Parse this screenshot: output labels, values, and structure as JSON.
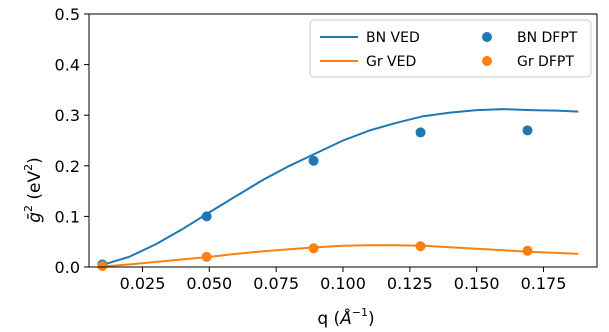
{
  "chart_data": {
    "type": "line",
    "xlabel_prefix": "q (",
    "xlabel_unit_base": "Å",
    "xlabel_unit_exp": "−1",
    "xlabel_suffix": ")",
    "ylabel_symbol": "ḡ",
    "ylabel_exp": "2",
    "ylabel_unit": " (eV",
    "ylabel_unit_exp": "2",
    "ylabel_close": ")",
    "xlim": [
      0.005,
      0.195
    ],
    "ylim": [
      0,
      0.5
    ],
    "xticks": [
      0.025,
      0.05,
      0.075,
      0.1,
      0.125,
      0.15,
      0.175
    ],
    "xtick_labels": [
      "0.025",
      "0.050",
      "0.075",
      "0.100",
      "0.125",
      "0.150",
      "0.175"
    ],
    "yticks": [
      0,
      0.1,
      0.2,
      0.3,
      0.4,
      0.5
    ],
    "ytick_labels": [
      "0.0",
      "0.1",
      "0.2",
      "0.3",
      "0.4",
      "0.5"
    ],
    "grid": false,
    "legend_position": "top-right",
    "series": [
      {
        "name": "BN VED",
        "kind": "line",
        "color": "#1f77b4",
        "x": [
          0.01,
          0.02,
          0.03,
          0.04,
          0.05,
          0.06,
          0.07,
          0.08,
          0.09,
          0.1,
          0.11,
          0.12,
          0.13,
          0.14,
          0.15,
          0.16,
          0.17,
          0.18,
          0.188
        ],
        "y": [
          0.004,
          0.02,
          0.045,
          0.075,
          0.108,
          0.14,
          0.172,
          0.2,
          0.225,
          0.25,
          0.27,
          0.285,
          0.298,
          0.305,
          0.31,
          0.312,
          0.31,
          0.309,
          0.307
        ]
      },
      {
        "name": "Gr VED",
        "kind": "line",
        "color": "#ff7f0e",
        "x": [
          0.01,
          0.02,
          0.03,
          0.04,
          0.05,
          0.06,
          0.07,
          0.08,
          0.09,
          0.1,
          0.11,
          0.12,
          0.13,
          0.14,
          0.15,
          0.16,
          0.17,
          0.18,
          0.188
        ],
        "y": [
          0.001,
          0.005,
          0.01,
          0.015,
          0.02,
          0.026,
          0.031,
          0.035,
          0.039,
          0.042,
          0.043,
          0.043,
          0.042,
          0.039,
          0.036,
          0.033,
          0.03,
          0.028,
          0.026
        ]
      },
      {
        "name": "BN DFPT",
        "kind": "scatter",
        "color": "#1f77b4",
        "x": [
          0.01,
          0.049,
          0.089,
          0.129,
          0.169
        ],
        "y": [
          0.005,
          0.1,
          0.21,
          0.266,
          0.27
        ]
      },
      {
        "name": "Gr DFPT",
        "kind": "scatter",
        "color": "#ff7f0e",
        "x": [
          0.01,
          0.049,
          0.089,
          0.129,
          0.169
        ],
        "y": [
          0.002,
          0.02,
          0.037,
          0.041,
          0.032
        ]
      }
    ]
  }
}
